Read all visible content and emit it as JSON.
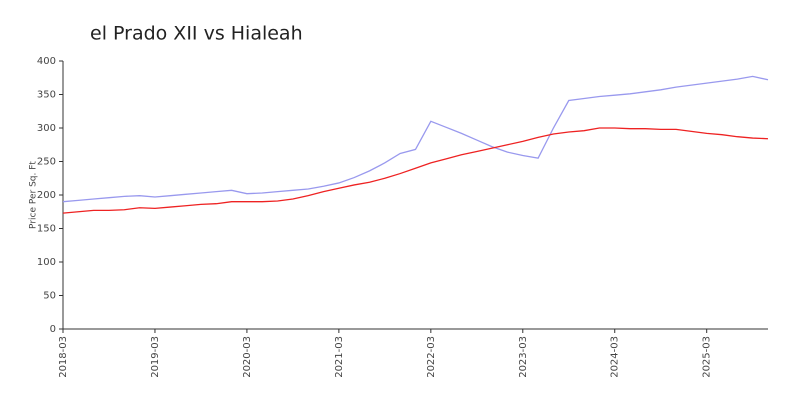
{
  "chart_data": {
    "type": "line",
    "title": "el Prado XII vs Hialeah",
    "y_label": "Price Per Sq. Ft",
    "categories": [
      "2018-03",
      null,
      null,
      null,
      null,
      null,
      "2019-03",
      null,
      null,
      null,
      null,
      null,
      "2020-03",
      null,
      null,
      null,
      null,
      null,
      "2021-03",
      null,
      null,
      null,
      null,
      null,
      "2022-03",
      null,
      null,
      null,
      null,
      null,
      "2023-03",
      null,
      null,
      null,
      null,
      null,
      "2024-03",
      null,
      null,
      null,
      null,
      null,
      "2025-03",
      null,
      null,
      null,
      null
    ],
    "series": [
      {
        "color": "#9999ee",
        "values": [
          190,
          192,
          194,
          196,
          198,
          199,
          197,
          199,
          201,
          203,
          205,
          207,
          202,
          203,
          205,
          207,
          209,
          213,
          218,
          226,
          236,
          248,
          262,
          268,
          310,
          301,
          292,
          282,
          272,
          264,
          259,
          255,
          300,
          341,
          344,
          347,
          349,
          351,
          354,
          357,
          361,
          364,
          367,
          370,
          373,
          377,
          372
        ]
      },
      {
        "color": "#ee2222",
        "values": [
          173,
          175,
          177,
          177,
          178,
          181,
          180,
          182,
          184,
          186,
          187,
          190,
          190,
          190,
          191,
          194,
          199,
          205,
          210,
          215,
          219,
          225,
          232,
          240,
          248,
          254,
          260,
          265,
          270,
          275,
          280,
          286,
          291,
          294,
          296,
          300,
          300,
          299,
          299,
          298,
          298,
          295,
          292,
          290,
          287,
          285,
          284
        ]
      }
    ],
    "ylim": [
      0,
      400
    ],
    "yticks": [
      0,
      50,
      100,
      150,
      200,
      250,
      300,
      350,
      400
    ],
    "grid": false
  }
}
